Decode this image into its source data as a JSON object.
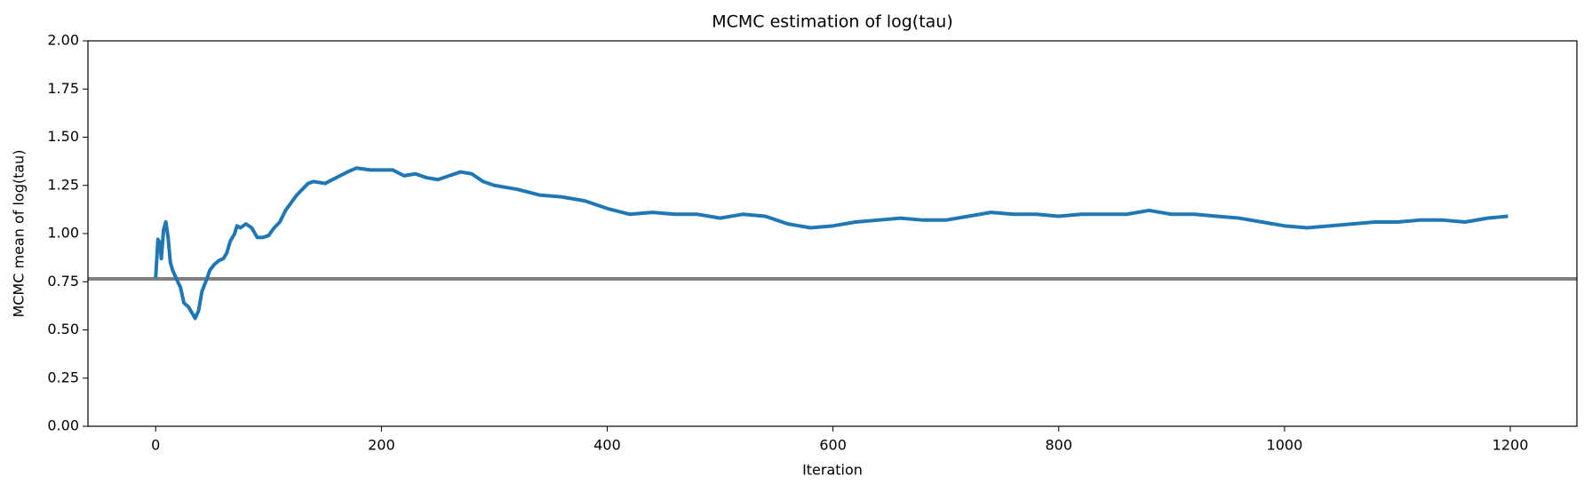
{
  "chart_data": {
    "type": "line",
    "title": "MCMC estimation of log(tau)",
    "x_label": "Iteration",
    "y_label": "MCMC mean of log(tau)",
    "x": [
      0,
      2,
      4,
      5,
      7,
      9,
      11,
      13,
      15,
      18,
      22,
      25,
      29,
      33,
      35,
      38,
      41,
      45,
      48,
      52,
      56,
      60,
      63,
      66,
      70,
      72,
      75,
      80,
      85,
      90,
      95,
      100,
      105,
      110,
      115,
      120,
      125,
      130,
      135,
      140,
      150,
      160,
      170,
      178,
      190,
      200,
      210,
      220,
      230,
      240,
      250,
      260,
      270,
      280,
      290,
      300,
      320,
      340,
      360,
      380,
      400,
      420,
      440,
      460,
      480,
      500,
      520,
      540,
      560,
      580,
      600,
      620,
      640,
      660,
      680,
      700,
      720,
      740,
      760,
      780,
      800,
      820,
      840,
      860,
      880,
      900,
      920,
      940,
      960,
      980,
      1000,
      1020,
      1040,
      1060,
      1080,
      1100,
      1120,
      1140,
      1160,
      1180,
      1198
    ],
    "series": [
      {
        "color": "#1f77b4",
        "values": [
          0.77,
          0.97,
          0.95,
          0.87,
          1.02,
          1.06,
          0.98,
          0.85,
          0.81,
          0.77,
          0.72,
          0.64,
          0.62,
          0.58,
          0.56,
          0.6,
          0.7,
          0.76,
          0.81,
          0.84,
          0.86,
          0.87,
          0.9,
          0.96,
          1.0,
          1.04,
          1.03,
          1.05,
          1.03,
          0.98,
          0.98,
          0.99,
          1.03,
          1.06,
          1.12,
          1.16,
          1.2,
          1.23,
          1.26,
          1.27,
          1.26,
          1.29,
          1.32,
          1.34,
          1.33,
          1.33,
          1.33,
          1.3,
          1.31,
          1.29,
          1.28,
          1.3,
          1.32,
          1.31,
          1.27,
          1.25,
          1.23,
          1.2,
          1.19,
          1.17,
          1.13,
          1.1,
          1.11,
          1.1,
          1.1,
          1.08,
          1.1,
          1.09,
          1.05,
          1.03,
          1.04,
          1.06,
          1.07,
          1.08,
          1.07,
          1.07,
          1.09,
          1.11,
          1.1,
          1.1,
          1.09,
          1.1,
          1.1,
          1.1,
          1.12,
          1.1,
          1.1,
          1.09,
          1.08,
          1.06,
          1.04,
          1.03,
          1.04,
          1.05,
          1.06,
          1.06,
          1.07,
          1.07,
          1.06,
          1.08,
          1.09
        ]
      }
    ],
    "hline": 0.765,
    "hline_color": "#808080",
    "xlim": [
      -60,
      1259
    ],
    "ylim": [
      0,
      2
    ],
    "xticks": [
      0,
      200,
      400,
      600,
      800,
      1000,
      1200
    ],
    "yticks": [
      {
        "value": 0,
        "label": "0.00"
      },
      {
        "value": 0.25,
        "label": "0.25"
      },
      {
        "value": 0.5,
        "label": "0.50"
      },
      {
        "value": 0.75,
        "label": "0.75"
      },
      {
        "value": 1,
        "label": "1.00"
      },
      {
        "value": 1.25,
        "label": "1.25"
      },
      {
        "value": 1.5,
        "label": "1.50"
      },
      {
        "value": 1.75,
        "label": "1.75"
      },
      {
        "value": 2,
        "label": "2.00"
      }
    ]
  }
}
